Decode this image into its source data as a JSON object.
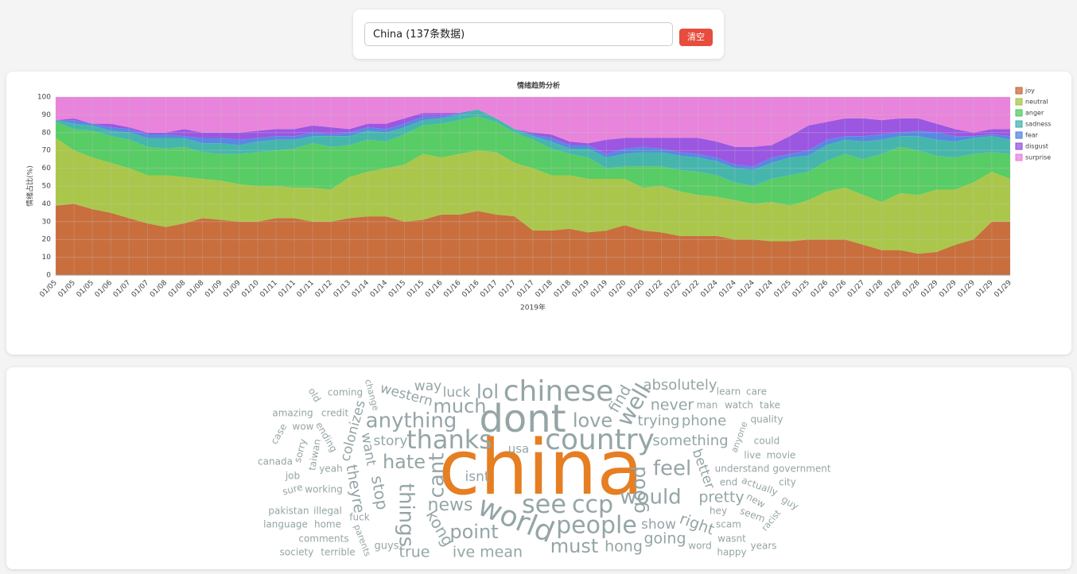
{
  "search": {
    "value": "China (137条数据)",
    "button": "清空"
  },
  "chart_data": {
    "type": "area",
    "stacked": true,
    "title": "情绪趋势分析",
    "y_label": "情绪占比(%)",
    "x_label": "2019年",
    "categories": [
      "01/05",
      "01/05",
      "01/05",
      "01/06",
      "01/07",
      "01/07",
      "01/08",
      "01/08",
      "01/08",
      "01/09",
      "01/09",
      "01/10",
      "01/11",
      "01/11",
      "01/11",
      "01/12",
      "01/13",
      "01/14",
      "01/14",
      "01/15",
      "01/15",
      "01/16",
      "01/16",
      "01/16",
      "01/17",
      "01/17",
      "01/17",
      "01/18",
      "01/18",
      "01/19",
      "01/19",
      "01/20",
      "01/20",
      "01/22",
      "01/22",
      "01/22",
      "01/24",
      "01/24",
      "01/24",
      "01/24",
      "01/25",
      "01/25",
      "01/26",
      "01/26",
      "01/27",
      "01/28",
      "01/28",
      "01/28",
      "01/29",
      "01/29",
      "01/29",
      "01/29",
      "01/29"
    ],
    "series": [
      {
        "name": "joy",
        "color": "#c4622d",
        "values": [
          39,
          40,
          37,
          35,
          32,
          29,
          27,
          29,
          32,
          31,
          30,
          30,
          32,
          32,
          30,
          30,
          32,
          33,
          33,
          30,
          31,
          34,
          34,
          36,
          34,
          33,
          25,
          25,
          26,
          24,
          25,
          28,
          25,
          24,
          22,
          22,
          22,
          20,
          20,
          19,
          19,
          20,
          20,
          20,
          17,
          14,
          14,
          12,
          13,
          17,
          20,
          30,
          30
        ]
      },
      {
        "name": "neutral",
        "color": "#a3c23c",
        "values": [
          38,
          30,
          29,
          28,
          28,
          27,
          29,
          26,
          22,
          22,
          21,
          20,
          18,
          17,
          19,
          18,
          23,
          25,
          27,
          32,
          37,
          32,
          34,
          34,
          35,
          30,
          35,
          31,
          30,
          30,
          29,
          26,
          24,
          26,
          25,
          23,
          22,
          22,
          20,
          22,
          20,
          22,
          27,
          29,
          28,
          27,
          32,
          33,
          35,
          31,
          32,
          28,
          24
        ]
      },
      {
        "name": "anger",
        "color": "#4ac858",
        "values": [
          9,
          12,
          15,
          15,
          16,
          16,
          15,
          17,
          15,
          15,
          17,
          19,
          20,
          22,
          25,
          24,
          18,
          18,
          15,
          17,
          16,
          19,
          19,
          19,
          17,
          17,
          16,
          15,
          12,
          12,
          6,
          7,
          12,
          11,
          12,
          13,
          12,
          10,
          10,
          13,
          17,
          16,
          17,
          19,
          20,
          27,
          26,
          25,
          19,
          18,
          16,
          11,
          14
        ]
      },
      {
        "name": "sadness",
        "color": "#36b0a6",
        "values": [
          1,
          3,
          3,
          3,
          4,
          5,
          6,
          5,
          5,
          6,
          5,
          6,
          6,
          5,
          4,
          6,
          5,
          5,
          5,
          4,
          3,
          3,
          3,
          4,
          2,
          2,
          2,
          4,
          3,
          5,
          6,
          7,
          8,
          8,
          8,
          8,
          8,
          8,
          9,
          9,
          10,
          9,
          9,
          8,
          10,
          8,
          6,
          8,
          9,
          9,
          9,
          9,
          8
        ]
      },
      {
        "name": "fear",
        "color": "#4a7ee0",
        "values": [
          0,
          2,
          1,
          2,
          2,
          2,
          2,
          1,
          3,
          3,
          3,
          2,
          2,
          2,
          2,
          1,
          2,
          2,
          2,
          2,
          2,
          1,
          1,
          0,
          0,
          0,
          1,
          2,
          2,
          2,
          2,
          3,
          3,
          2,
          2,
          2,
          2,
          2,
          2,
          3,
          2,
          3,
          3,
          2,
          3,
          3,
          2,
          3,
          4,
          3,
          1,
          1,
          2
        ]
      },
      {
        "name": "disgust",
        "color": "#9348e0",
        "values": [
          0,
          1,
          0,
          2,
          1,
          1,
          1,
          4,
          3,
          3,
          4,
          4,
          4,
          4,
          4,
          4,
          2,
          2,
          3,
          3,
          2,
          2,
          0,
          0,
          0,
          0,
          1,
          2,
          2,
          1,
          8,
          6,
          5,
          6,
          8,
          9,
          9,
          10,
          11,
          7,
          10,
          14,
          10,
          10,
          10,
          8,
          8,
          7,
          5,
          4,
          2,
          3,
          4
        ]
      },
      {
        "name": "surprise",
        "color": "#e67ad8",
        "values": [
          13,
          12,
          15,
          15,
          17,
          20,
          20,
          18,
          20,
          20,
          20,
          19,
          18,
          18,
          16,
          17,
          18,
          15,
          15,
          12,
          9,
          9,
          9,
          7,
          12,
          18,
          20,
          21,
          25,
          26,
          24,
          23,
          23,
          23,
          23,
          23,
          25,
          28,
          28,
          27,
          22,
          16,
          14,
          12,
          12,
          13,
          12,
          12,
          15,
          18,
          20,
          18,
          18
        ]
      }
    ],
    "ylim": [
      0,
      100
    ],
    "yticks": [
      0,
      10,
      20,
      30,
      40,
      50,
      60,
      70,
      80,
      90,
      100
    ],
    "grid": true,
    "legend": "right"
  },
  "word_cloud": {
    "color": "#95a5a6",
    "top_color": "#e67e22",
    "words": [
      "china",
      "dont",
      "chinese",
      "country",
      "world",
      "see",
      "ccp",
      "people",
      "thanks",
      "anything",
      "much",
      "lol",
      "love",
      "well",
      "hate",
      "news",
      "point",
      "ive mean",
      "must",
      "hong",
      "things",
      "cant",
      "kong",
      "stop",
      "theyre",
      "true",
      "guys",
      "good",
      "would",
      "feel",
      "pretty",
      "right",
      "show",
      "going",
      "never",
      "absolutely",
      "trying",
      "phone",
      "something",
      "better",
      "usa",
      "isnt",
      "story",
      "want",
      "western",
      "way",
      "luck",
      "colonizes",
      "change",
      "coming",
      "old",
      "amazing",
      "credit",
      "case",
      "wow",
      "ending",
      "sorry",
      "taiwan",
      "canada",
      "yeah",
      "job",
      "sure",
      "working",
      "pakistan",
      "illegal",
      "fuck",
      "language",
      "home",
      "parents",
      "comments",
      "society",
      "terrible",
      "man",
      "watch",
      "take",
      "learn",
      "care",
      "quality",
      "anyone",
      "could",
      "live",
      "movie",
      "understand",
      "government",
      "end",
      "actually",
      "city",
      "new",
      "guy",
      "hey",
      "seem",
      "racist",
      "scam",
      "wasnt",
      "word",
      "happy",
      "years",
      "find"
    ]
  }
}
